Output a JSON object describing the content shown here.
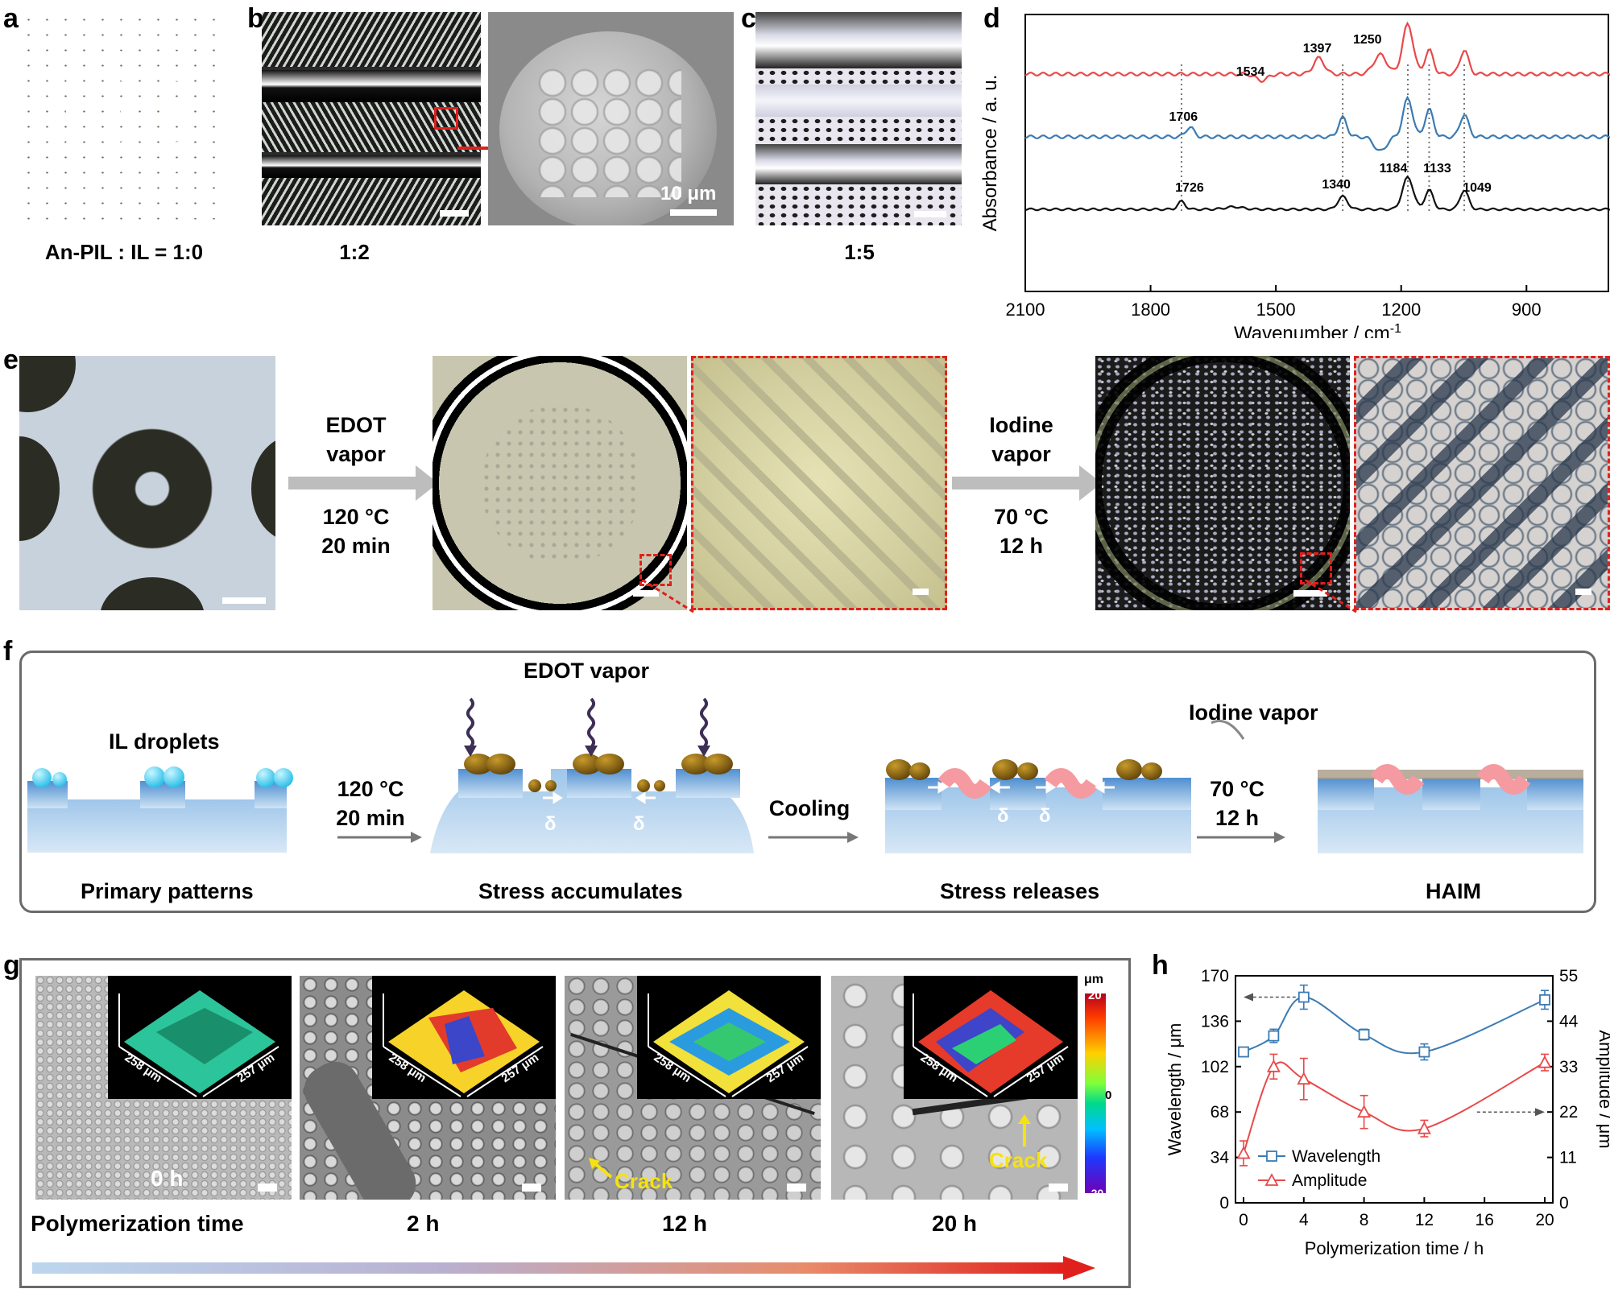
{
  "panels": {
    "a": {
      "label": "a",
      "caption": "An-PIL : IL = 1:0"
    },
    "b": {
      "label": "b",
      "caption": "1:2",
      "sem_scale": "10 μm"
    },
    "c": {
      "label": "c",
      "caption": "1:5"
    },
    "d": {
      "label": "d"
    },
    "e": {
      "label": "e",
      "step1_line1": "EDOT",
      "step1_line2": "vapor",
      "step1_cond1": "120 °C",
      "step1_cond2": "20 min",
      "step2_line1": "Iodine",
      "step2_line2": "vapor",
      "step2_cond1": "70 °C",
      "step2_cond2": "12 h"
    },
    "f": {
      "label": "f",
      "edot_vapor": "EDOT vapor",
      "il_droplets": "IL droplets",
      "iodine_vapor": "Iodine vapor",
      "arrow1_l1": "120 °C",
      "arrow1_l2": "20 min",
      "arrow2": "Cooling",
      "arrow3_l1": "70 °C",
      "arrow3_l2": "12 h",
      "delta": "δ",
      "stage1": "Primary patterns",
      "stage2": "Stress accumulates",
      "stage3": "Stress releases",
      "stage4": "HAIM"
    },
    "g": {
      "label": "g",
      "t0": "0 h",
      "t2": "2 h",
      "t12": "12 h",
      "t20": "20 h",
      "poly_label": "Polymerization time",
      "crack": "Crack",
      "dim_x": "258 μm",
      "dim_y": "257 μm",
      "colorbar_unit": "μm",
      "colorbar_max": "20",
      "colorbar_mid": "0",
      "colorbar_min": "-20"
    },
    "h": {
      "label": "h"
    }
  },
  "colors": {
    "red": "#e8494a",
    "blue": "#3b7bb3",
    "black": "#111111",
    "arrow_red": "#e0201c"
  },
  "chart_data": [
    {
      "type": "line",
      "id": "d",
      "xlabel": "Wavenumber / cm-1",
      "ylabel": "Absorbance / a. u.",
      "xlim": [
        2100,
        700
      ],
      "xticks": [
        "2100",
        "1800",
        "1500",
        "1200",
        "900"
      ],
      "reversed_x": true,
      "peak_labels": [
        {
          "text": "1534",
          "wn": 1534,
          "series": "red"
        },
        {
          "text": "1397",
          "wn": 1397,
          "series": "red"
        },
        {
          "text": "1250",
          "wn": 1250,
          "series": "red"
        },
        {
          "text": "1706",
          "wn": 1706,
          "series": "blue"
        },
        {
          "text": "1726",
          "wn": 1726,
          "series": "black"
        },
        {
          "text": "1340",
          "wn": 1340,
          "series": "black"
        },
        {
          "text": "1184",
          "wn": 1184,
          "series": "black"
        },
        {
          "text": "1133",
          "wn": 1133,
          "series": "black"
        },
        {
          "text": "1049",
          "wn": 1049,
          "series": "black"
        }
      ],
      "dotted_lines_wn": [
        1726,
        1340,
        1184,
        1133,
        1049
      ]
    },
    {
      "type": "line",
      "id": "h",
      "xlabel": "Polymerization time / h",
      "ylabel_left": "Wavelength / μm",
      "ylabel_right": "Amplitude / μm",
      "x": [
        0,
        2,
        4,
        8,
        12,
        20
      ],
      "xlim": [
        0,
        20
      ],
      "xticks": [
        "0",
        "4",
        "8",
        "12",
        "16",
        "20"
      ],
      "ylim_left": [
        0,
        170
      ],
      "yticks_left": [
        "0",
        "34",
        "68",
        "102",
        "136",
        "170"
      ],
      "ylim_right": [
        0,
        55
      ],
      "yticks_right": [
        "0",
        "11",
        "22",
        "33",
        "44",
        "55"
      ],
      "series": [
        {
          "name": "Wavelength",
          "axis": "left",
          "values": [
            113,
            125,
            154,
            126,
            113,
            152
          ],
          "errors": [
            3,
            5,
            9,
            4,
            6,
            7
          ]
        },
        {
          "name": "Amplitude",
          "axis": "right",
          "values": [
            12,
            33,
            30,
            22,
            18,
            34
          ],
          "errors": [
            3,
            3,
            5,
            4,
            2,
            2
          ]
        }
      ]
    }
  ]
}
